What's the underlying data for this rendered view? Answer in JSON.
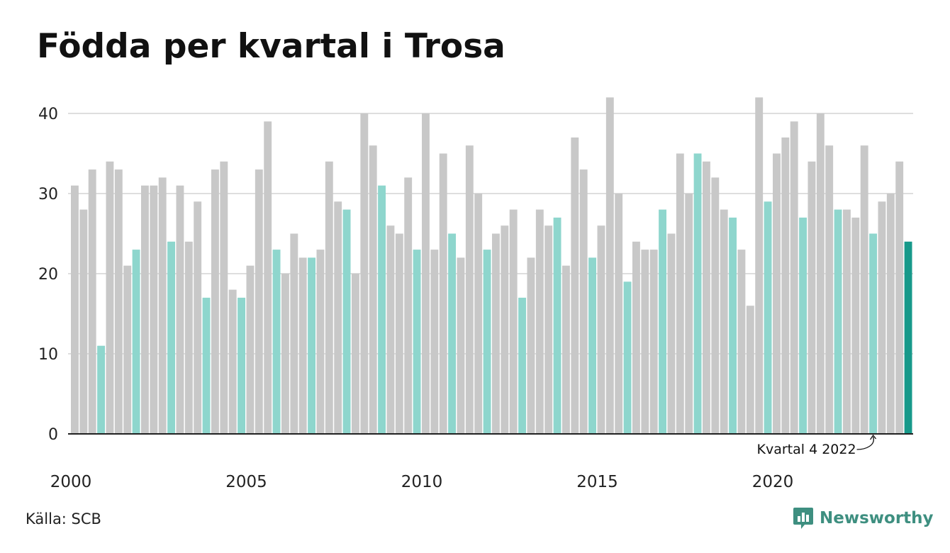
{
  "title": "Födda per kvartal i Trosa",
  "source": "Källa: SCB",
  "brand": "Newsworthy",
  "colors": {
    "other_quarters": "#c8c8c8",
    "q4_quarters": "#8ed6cd",
    "latest": "#17998a",
    "grid": "#dedede",
    "axis": "#222222",
    "brand": "#3e8f80"
  },
  "chart_data": {
    "type": "bar",
    "title": "Födda per kvartal i Trosa",
    "xlabel": "",
    "ylabel": "",
    "ylim": [
      0,
      42
    ],
    "yticks": [
      0,
      10,
      20,
      30,
      40
    ],
    "x_tick_labels": [
      "2000",
      "2005",
      "2010",
      "2015",
      "2020"
    ],
    "grid": true,
    "annotation": {
      "text": "Kvartal 4 2022",
      "target_index": 91
    },
    "categories": [
      "2000 Q1",
      "2000 Q2",
      "2000 Q3",
      "2000 Q4",
      "2001 Q1",
      "2001 Q2",
      "2001 Q3",
      "2001 Q4",
      "2002 Q1",
      "2002 Q2",
      "2002 Q3",
      "2002 Q4",
      "2003 Q1",
      "2003 Q2",
      "2003 Q3",
      "2003 Q4",
      "2004 Q1",
      "2004 Q2",
      "2004 Q3",
      "2004 Q4",
      "2005 Q1",
      "2005 Q2",
      "2005 Q3",
      "2005 Q4",
      "2006 Q1",
      "2006 Q2",
      "2006 Q3",
      "2006 Q4",
      "2007 Q1",
      "2007 Q2",
      "2007 Q3",
      "2007 Q4",
      "2008 Q1",
      "2008 Q2",
      "2008 Q3",
      "2008 Q4",
      "2009 Q1",
      "2009 Q2",
      "2009 Q3",
      "2009 Q4",
      "2010 Q1",
      "2010 Q2",
      "2010 Q3",
      "2010 Q4",
      "2011 Q1",
      "2011 Q2",
      "2011 Q3",
      "2011 Q4",
      "2012 Q1",
      "2012 Q2",
      "2012 Q3",
      "2012 Q4",
      "2013 Q1",
      "2013 Q2",
      "2013 Q3",
      "2013 Q4",
      "2014 Q1",
      "2014 Q2",
      "2014 Q3",
      "2014 Q4",
      "2015 Q1",
      "2015 Q2",
      "2015 Q3",
      "2015 Q4",
      "2016 Q1",
      "2016 Q2",
      "2016 Q3",
      "2016 Q4",
      "2017 Q1",
      "2017 Q2",
      "2017 Q3",
      "2017 Q4",
      "2018 Q1",
      "2018 Q2",
      "2018 Q3",
      "2018 Q4",
      "2019 Q1",
      "2019 Q2",
      "2019 Q3",
      "2019 Q4",
      "2020 Q1",
      "2020 Q2",
      "2020 Q3",
      "2020 Q4",
      "2021 Q1",
      "2021 Q2",
      "2021 Q3",
      "2021 Q4",
      "2022 Q1",
      "2022 Q2",
      "2022 Q3",
      "2022 Q4",
      "2023 Q1",
      "2023 Q2",
      "2023 Q3",
      "2023 Q4"
    ],
    "values": [
      31,
      28,
      33,
      11,
      34,
      33,
      21,
      23,
      31,
      31,
      32,
      24,
      31,
      24,
      29,
      17,
      33,
      34,
      18,
      17,
      21,
      33,
      39,
      23,
      20,
      25,
      22,
      22,
      23,
      34,
      29,
      28,
      20,
      40,
      36,
      31,
      26,
      25,
      32,
      23,
      40,
      23,
      35,
      25,
      22,
      36,
      30,
      23,
      25,
      26,
      28,
      17,
      22,
      28,
      26,
      27,
      21,
      37,
      33,
      22,
      26,
      42,
      30,
      19,
      24,
      23,
      23,
      28,
      25,
      35,
      30,
      35,
      34,
      32,
      28,
      27,
      23,
      16,
      42,
      29,
      35,
      37,
      39,
      27,
      34,
      40,
      36,
      28,
      28,
      27,
      36,
      25,
      29,
      30,
      34,
      24
    ]
  }
}
